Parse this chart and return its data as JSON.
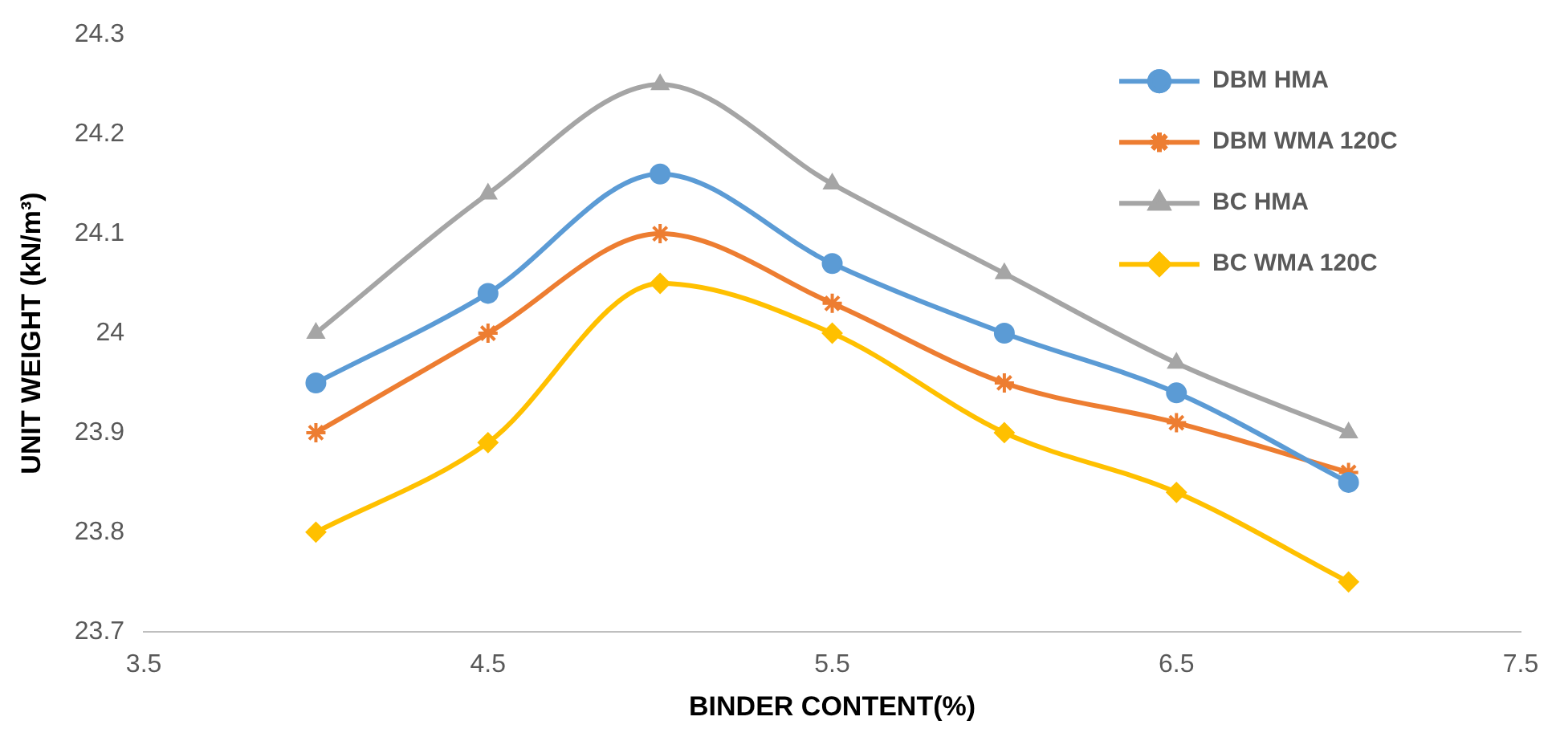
{
  "chart_data": {
    "type": "line",
    "xlabel": "BINDER CONTENT(%)",
    "ylabel": "UNIT WEIGHT (kN/m³)",
    "x": [
      4,
      4.5,
      5,
      5.5,
      6,
      6.5,
      7
    ],
    "xlim": [
      3.5,
      7.5
    ],
    "xticks": [
      3.5,
      4.5,
      5.5,
      6.5,
      7.5
    ],
    "ylim": [
      23.7,
      24.3
    ],
    "yticks": [
      23.7,
      23.8,
      23.9,
      24,
      24.1,
      24.2,
      24.3
    ],
    "grid": false,
    "legend": "top right",
    "line_style": "solid",
    "series": [
      {
        "name": "DBM HMA",
        "color": "#5b9bd5",
        "marker": "circle",
        "values": [
          23.95,
          24.04,
          24.16,
          24.07,
          24.0,
          23.94,
          23.85
        ]
      },
      {
        "name": "DBM WMA 120C",
        "color": "#ed7d31",
        "marker": "cross",
        "values": [
          23.9,
          24.0,
          24.1,
          24.03,
          23.95,
          23.91,
          23.86
        ]
      },
      {
        "name": "BC HMA",
        "color": "#a5a5a5",
        "marker": "triangle",
        "values": [
          24.0,
          24.14,
          24.25,
          24.15,
          24.06,
          23.97,
          23.9
        ]
      },
      {
        "name": "BC WMA 120C",
        "color": "#ffc000",
        "marker": "diamond",
        "values": [
          23.8,
          23.89,
          24.05,
          24.0,
          23.9,
          23.84,
          23.75
        ]
      }
    ]
  }
}
